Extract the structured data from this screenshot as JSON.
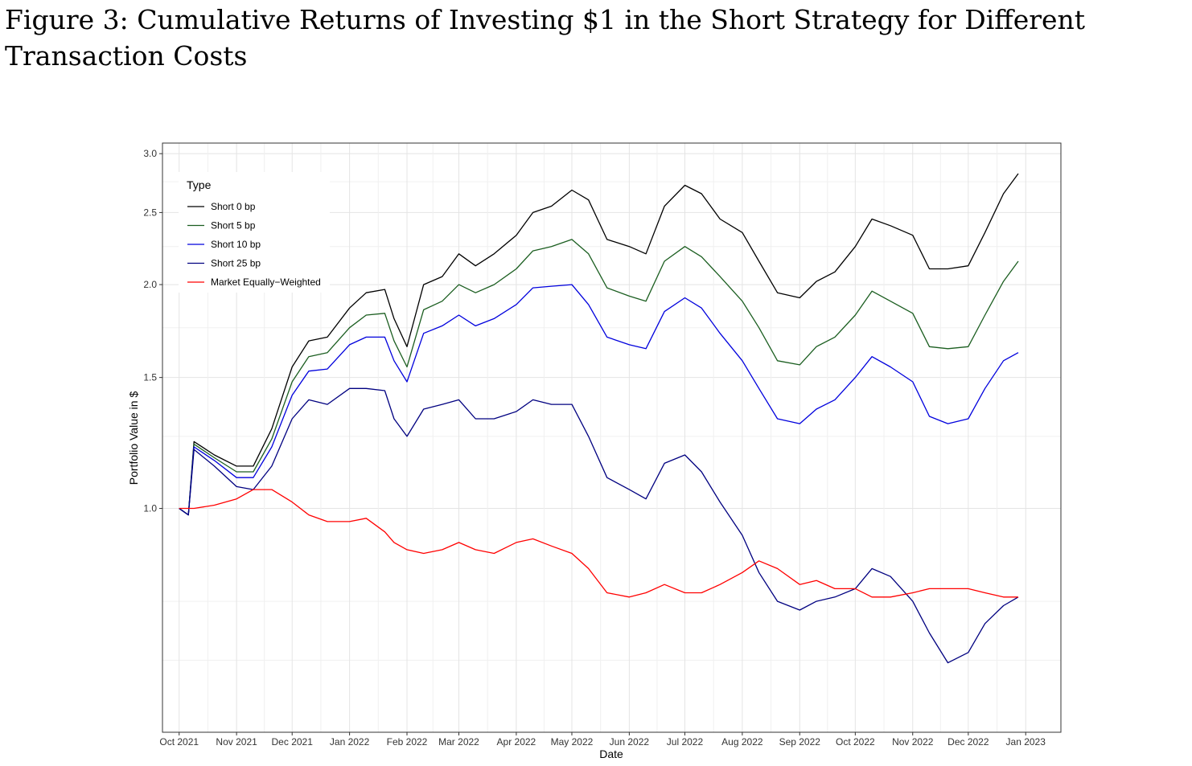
{
  "figure": {
    "title": "Figure 3: Cumulative Returns of Investing $1 in the Short Strategy for Different Transaction Costs"
  },
  "chart_data": {
    "type": "line",
    "xlabel": "Date",
    "ylabel": "Portfolio Value in $",
    "y_scale": "log",
    "ylim": [
      0.5,
      3.1
    ],
    "xlim": [
      "2021-09-22",
      "2023-01-20"
    ],
    "y_ticks": [
      1.0,
      1.5,
      2.0,
      2.5,
      3.0
    ],
    "y_tick_labels": [
      "1.0",
      "1.5",
      "2.0",
      "2.5",
      "3.0"
    ],
    "x_ticks": [
      "2021-10-01",
      "2021-11-01",
      "2021-12-01",
      "2022-01-01",
      "2022-02-01",
      "2022-03-01",
      "2022-04-01",
      "2022-05-01",
      "2022-06-01",
      "2022-07-01",
      "2022-08-01",
      "2022-09-01",
      "2022-10-01",
      "2022-11-01",
      "2022-12-01",
      "2023-01-01"
    ],
    "x_tick_labels": [
      "Oct 2021",
      "Nov 2021",
      "Dec 2021",
      "Jan 2022",
      "Feb 2022",
      "Mar 2022",
      "Apr 2022",
      "May 2022",
      "Jun 2022",
      "Jul 2022",
      "Aug 2022",
      "Sep 2022",
      "Oct 2022",
      "Nov 2022",
      "Dec 2022",
      "Jan 2023"
    ],
    "grid": true,
    "legend": {
      "title": "Type",
      "position": "top-left"
    },
    "x": [
      "2021-10-01",
      "2021-10-06",
      "2021-10-09",
      "2021-10-20",
      "2021-11-01",
      "2021-11-10",
      "2021-11-20",
      "2021-12-01",
      "2021-12-10",
      "2021-12-20",
      "2022-01-01",
      "2022-01-10",
      "2022-01-20",
      "2022-01-25",
      "2022-02-01",
      "2022-02-10",
      "2022-02-20",
      "2022-03-01",
      "2022-03-10",
      "2022-03-20",
      "2022-04-01",
      "2022-04-10",
      "2022-04-20",
      "2022-05-01",
      "2022-05-10",
      "2022-05-20",
      "2022-06-01",
      "2022-06-10",
      "2022-06-20",
      "2022-07-01",
      "2022-07-10",
      "2022-07-20",
      "2022-08-01",
      "2022-08-10",
      "2022-08-20",
      "2022-09-01",
      "2022-09-10",
      "2022-09-20",
      "2022-10-01",
      "2022-10-10",
      "2022-10-20",
      "2022-11-01",
      "2022-11-10",
      "2022-11-20",
      "2022-12-01",
      "2022-12-10",
      "2022-12-20",
      "2022-12-28"
    ],
    "series": [
      {
        "name": "Short 0 bp",
        "color": "#000000",
        "values": [
          1.0,
          0.98,
          1.23,
          1.18,
          1.14,
          1.14,
          1.28,
          1.55,
          1.68,
          1.7,
          1.86,
          1.95,
          1.97,
          1.8,
          1.65,
          2.0,
          2.05,
          2.2,
          2.12,
          2.2,
          2.33,
          2.5,
          2.55,
          2.68,
          2.6,
          2.3,
          2.25,
          2.2,
          2.55,
          2.72,
          2.65,
          2.45,
          2.35,
          2.15,
          1.95,
          1.92,
          2.02,
          2.08,
          2.25,
          2.45,
          2.4,
          2.33,
          2.1,
          2.1,
          2.12,
          2.35,
          2.65,
          2.82
        ]
      },
      {
        "name": "Short 5 bp",
        "color": "#1b5e20",
        "values": [
          1.0,
          0.98,
          1.22,
          1.17,
          1.12,
          1.12,
          1.24,
          1.48,
          1.6,
          1.62,
          1.75,
          1.82,
          1.83,
          1.68,
          1.55,
          1.85,
          1.9,
          2.0,
          1.95,
          2.0,
          2.1,
          2.22,
          2.25,
          2.3,
          2.2,
          1.98,
          1.93,
          1.9,
          2.15,
          2.25,
          2.18,
          2.05,
          1.9,
          1.75,
          1.58,
          1.56,
          1.65,
          1.7,
          1.82,
          1.96,
          1.9,
          1.83,
          1.65,
          1.64,
          1.65,
          1.82,
          2.02,
          2.15
        ]
      },
      {
        "name": "Short 10 bp",
        "color": "#0000dd",
        "values": [
          1.0,
          0.98,
          1.21,
          1.16,
          1.1,
          1.1,
          1.21,
          1.42,
          1.53,
          1.54,
          1.66,
          1.7,
          1.7,
          1.58,
          1.48,
          1.72,
          1.76,
          1.82,
          1.76,
          1.8,
          1.88,
          1.98,
          1.99,
          2.0,
          1.88,
          1.7,
          1.66,
          1.64,
          1.84,
          1.92,
          1.86,
          1.72,
          1.58,
          1.45,
          1.32,
          1.3,
          1.36,
          1.4,
          1.5,
          1.6,
          1.55,
          1.48,
          1.33,
          1.3,
          1.32,
          1.45,
          1.58,
          1.62
        ]
      },
      {
        "name": "Short 25 bp",
        "color": "#000080",
        "values": [
          1.0,
          0.98,
          1.2,
          1.14,
          1.07,
          1.06,
          1.14,
          1.32,
          1.4,
          1.38,
          1.45,
          1.45,
          1.44,
          1.32,
          1.25,
          1.36,
          1.38,
          1.4,
          1.32,
          1.32,
          1.35,
          1.4,
          1.38,
          1.38,
          1.25,
          1.1,
          1.06,
          1.03,
          1.15,
          1.18,
          1.12,
          1.02,
          0.92,
          0.82,
          0.75,
          0.73,
          0.75,
          0.76,
          0.78,
          0.83,
          0.81,
          0.75,
          0.68,
          0.62,
          0.64,
          0.7,
          0.74,
          0.76
        ]
      },
      {
        "name": "Market Equally−Weighted",
        "color": "#ff0000",
        "values": [
          1.0,
          1.0,
          1.0,
          1.01,
          1.03,
          1.06,
          1.06,
          1.02,
          0.98,
          0.96,
          0.96,
          0.97,
          0.93,
          0.9,
          0.88,
          0.87,
          0.88,
          0.9,
          0.88,
          0.87,
          0.9,
          0.91,
          0.89,
          0.87,
          0.83,
          0.77,
          0.76,
          0.77,
          0.79,
          0.77,
          0.77,
          0.79,
          0.82,
          0.85,
          0.83,
          0.79,
          0.8,
          0.78,
          0.78,
          0.76,
          0.76,
          0.77,
          0.78,
          0.78,
          0.78,
          0.77,
          0.76,
          0.76
        ]
      }
    ]
  }
}
